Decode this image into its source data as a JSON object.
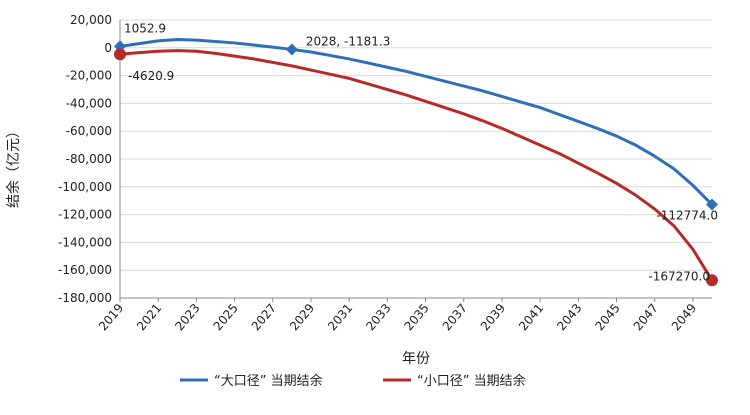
{
  "chart_data": {
    "type": "line",
    "title": "",
    "xlabel": "年份",
    "ylabel": "结余（亿元）",
    "ylim": [
      -180000,
      20000
    ],
    "xlim": [
      2019,
      2050
    ],
    "x_ticks": [
      2019,
      2021,
      2023,
      2025,
      2027,
      2029,
      2031,
      2033,
      2035,
      2037,
      2039,
      2041,
      2043,
      2045,
      2047,
      2049
    ],
    "y_ticks": [
      20000,
      0,
      -20000,
      -40000,
      -60000,
      -80000,
      -100000,
      -120000,
      -140000,
      -160000,
      -180000
    ],
    "y_tick_labels": [
      "20,000",
      "0",
      "-20,000",
      "-40,000",
      "-60,000",
      "-80,000",
      "-100,000",
      "-120,000",
      "-140,000",
      "-160,000",
      "-180,000"
    ],
    "grid": true,
    "legend_position": "bottom",
    "series": [
      {
        "name": "“大口径” 当期结余",
        "color": "#2e6fb7",
        "x": [
          2019,
          2020,
          2021,
          2022,
          2023,
          2024,
          2025,
          2026,
          2027,
          2028,
          2029,
          2030,
          2031,
          2032,
          2033,
          2034,
          2035,
          2036,
          2037,
          2038,
          2039,
          2040,
          2041,
          2042,
          2043,
          2044,
          2045,
          2046,
          2047,
          2048,
          2049,
          2050
        ],
        "values": [
          1052.9,
          3000,
          5000,
          6000,
          5500,
          4500,
          3500,
          2000,
          500,
          -1181.3,
          -3000,
          -5500,
          -8000,
          -11000,
          -14000,
          -17000,
          -20500,
          -24000,
          -27500,
          -31000,
          -35000,
          -39000,
          -43000,
          -48000,
          -53000,
          -58000,
          -63500,
          -70000,
          -78000,
          -87000,
          -99000,
          -112774.0
        ]
      },
      {
        "name": "“小口径” 当期结余",
        "color": "#b72a2a",
        "x": [
          2019,
          2020,
          2021,
          2022,
          2023,
          2024,
          2025,
          2026,
          2027,
          2028,
          2029,
          2030,
          2031,
          2032,
          2033,
          2034,
          2035,
          2036,
          2037,
          2038,
          2039,
          2040,
          2041,
          2042,
          2043,
          2044,
          2045,
          2046,
          2047,
          2048,
          2049,
          2050
        ],
        "values": [
          -4620.9,
          -3500,
          -2500,
          -2000,
          -2500,
          -4000,
          -6000,
          -8000,
          -10500,
          -13000,
          -16000,
          -19000,
          -22000,
          -26000,
          -30000,
          -34000,
          -38500,
          -43000,
          -47500,
          -52500,
          -58000,
          -64000,
          -70000,
          -76000,
          -83000,
          -90000,
          -97500,
          -106000,
          -116000,
          -128000,
          -145000,
          -167270.0
        ]
      }
    ],
    "annotations": [
      {
        "series": 0,
        "x": 2019,
        "y": 1052.9,
        "label": "1052.9",
        "marker": "diamond"
      },
      {
        "series": 0,
        "x": 2028,
        "y": -1181.3,
        "label": "2028, -1181.3",
        "marker": "diamond"
      },
      {
        "series": 0,
        "x": 2050,
        "y": -112774.0,
        "label": "-112774.0",
        "marker": "diamond"
      },
      {
        "series": 1,
        "x": 2019,
        "y": -4620.9,
        "label": "-4620.9",
        "marker": "circle"
      },
      {
        "series": 1,
        "x": 2050,
        "y": -167270.0,
        "label": "-167270.0",
        "marker": "circle"
      }
    ]
  }
}
